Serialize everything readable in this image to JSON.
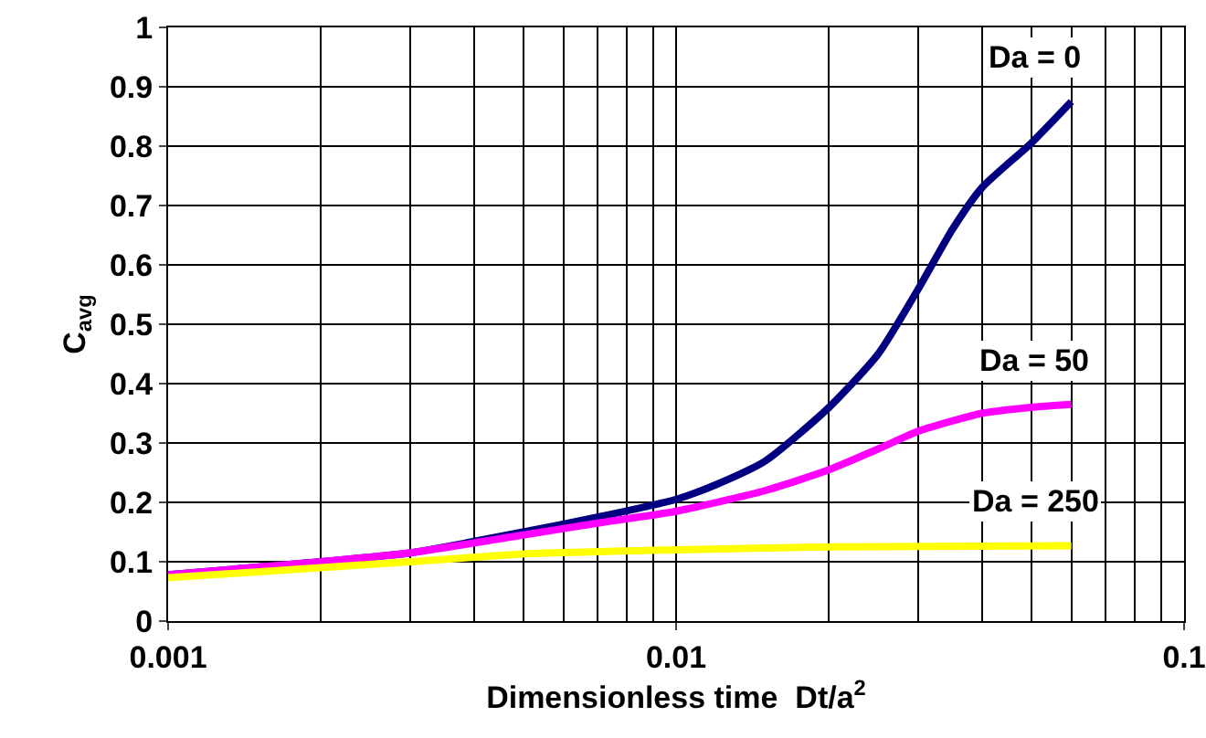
{
  "chart_data": {
    "type": "line",
    "xlabel": "Dimensionless time  Dt/a$^{2}$",
    "ylabel": "C$_{avg}$",
    "log": "x",
    "xlim": [
      0.001,
      0.1
    ],
    "xticks": [
      0.001,
      0.01,
      0.1
    ],
    "ylim": [
      0,
      1
    ],
    "yticks": [
      0,
      0.1,
      0.2,
      0.3,
      0.4,
      0.5,
      0.6,
      0.7,
      0.8,
      0.9,
      1
    ],
    "grid": true,
    "legend": false,
    "marker": "none",
    "line_style": "solid",
    "series": [
      {
        "name": "Da = 0",
        "color": "#000080",
        "x": [
          0.001,
          0.002,
          0.003,
          0.005,
          0.007,
          0.01,
          0.012,
          0.015,
          0.02,
          0.025,
          0.03,
          0.035,
          0.04,
          0.05,
          0.06
        ],
        "values": [
          0.078,
          0.1,
          0.115,
          0.15,
          0.175,
          0.205,
          0.23,
          0.27,
          0.36,
          0.45,
          0.56,
          0.66,
          0.73,
          0.805,
          0.875
        ]
      },
      {
        "name": "Da = 50",
        "color": "#ff00ff",
        "x": [
          0.001,
          0.002,
          0.003,
          0.005,
          0.007,
          0.01,
          0.015,
          0.02,
          0.025,
          0.03,
          0.04,
          0.05,
          0.06
        ],
        "values": [
          0.078,
          0.1,
          0.115,
          0.145,
          0.165,
          0.185,
          0.22,
          0.255,
          0.29,
          0.32,
          0.35,
          0.36,
          0.365
        ]
      },
      {
        "name": "Da = 250",
        "color": "#ffff00",
        "x": [
          0.001,
          0.002,
          0.003,
          0.005,
          0.01,
          0.02,
          0.06
        ],
        "values": [
          0.073,
          0.09,
          0.1,
          0.113,
          0.12,
          0.125,
          0.127
        ]
      }
    ]
  }
}
